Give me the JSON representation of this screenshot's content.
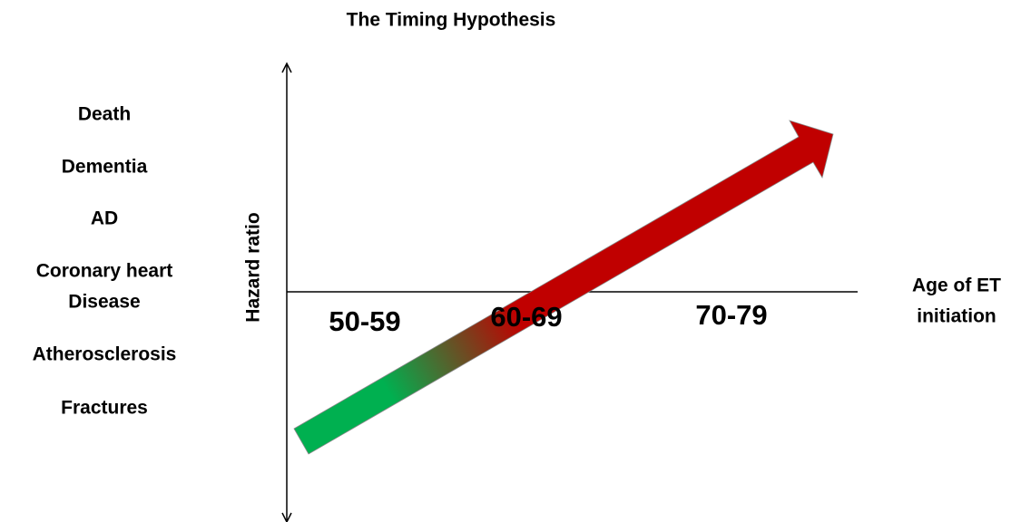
{
  "title": "The Timing Hypothesis",
  "outcomes": [
    [
      "Death"
    ],
    [
      "Dementia"
    ],
    [
      "AD"
    ],
    [
      "Coronary heart",
      "Disease"
    ],
    [
      "Atherosclerosis"
    ],
    [
      "Fractures"
    ]
  ],
  "y_axis_label": "Hazard ratio",
  "x_axis_label": [
    "Age of ET",
    "initiation"
  ],
  "age_groups": [
    "50-59",
    "60-69",
    "70-79"
  ]
}
